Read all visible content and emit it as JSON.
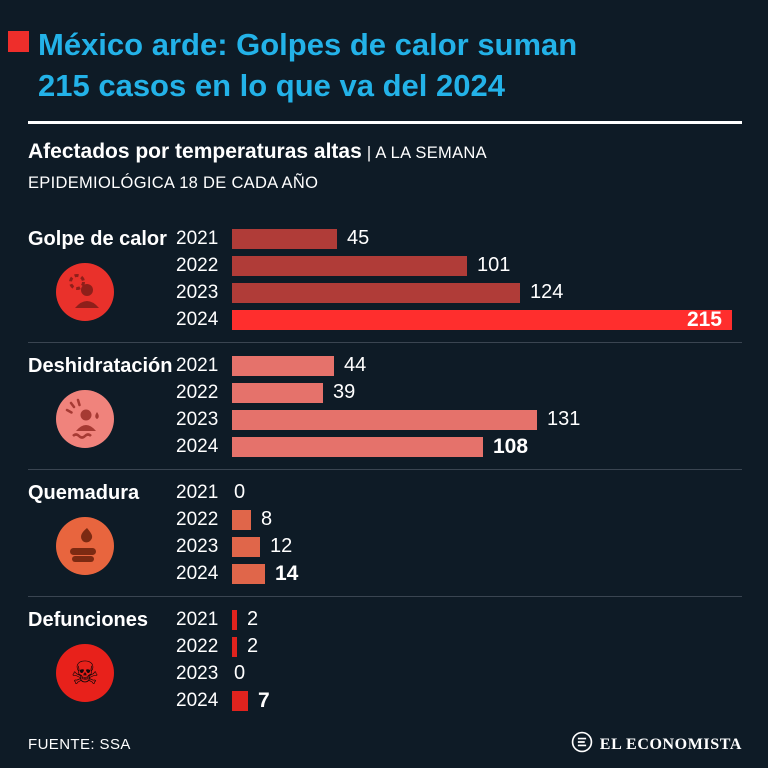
{
  "header": {
    "title_line1": "México arde: Golpes de calor suman",
    "title_line2": "215 casos en lo que va del 2024",
    "subtitle_bold": "Afectados por temperaturas altas",
    "subtitle_rest": "| A LA SEMANA",
    "subtitle_line2": "EPIDEMIOLÓGICA 18 DE CADA AÑO"
  },
  "footer": {
    "source": "FUENTE: SSA",
    "brand": "EL ECONOMISTA"
  },
  "colors": {
    "background": "#0e1b26",
    "title": "#23b2e8",
    "accent_square": "#ee2e2b",
    "divider": "#3a4551"
  },
  "chart_data": {
    "type": "bar",
    "orientation": "horizontal",
    "title": "Afectados por temperaturas altas | A LA SEMANA EPIDEMIOLÓGICA 18 DE CADA AÑO",
    "categories": [
      "2021",
      "2022",
      "2023",
      "2024"
    ],
    "max_value": 215,
    "legend_position": "none",
    "grid": false,
    "groups": [
      {
        "id": "golpe-de-calor",
        "name": "Golpe de calor",
        "icon": "heatstroke",
        "bar_color": "#b03c38",
        "highlight_color": "#ff2e2d",
        "highlight_index": 3,
        "value_inside": true,
        "values": [
          45,
          101,
          124,
          215
        ]
      },
      {
        "id": "deshidratacion",
        "name": "Deshidratación",
        "icon": "dehydration",
        "bar_color": "#e5726b",
        "highlight_index": 3,
        "value_inside": false,
        "values": [
          44,
          39,
          131,
          108
        ]
      },
      {
        "id": "quemadura",
        "name": "Quemadura",
        "icon": "burn-hand",
        "bar_color": "#e0664a",
        "highlight_index": 3,
        "value_inside": false,
        "values": [
          0,
          8,
          12,
          14
        ]
      },
      {
        "id": "defunciones",
        "name": "Defunciones",
        "icon": "skull-crossbones",
        "bar_color": "#e0231e",
        "highlight_index": 3,
        "value_inside": false,
        "values": [
          2,
          2,
          0,
          7
        ]
      }
    ]
  }
}
